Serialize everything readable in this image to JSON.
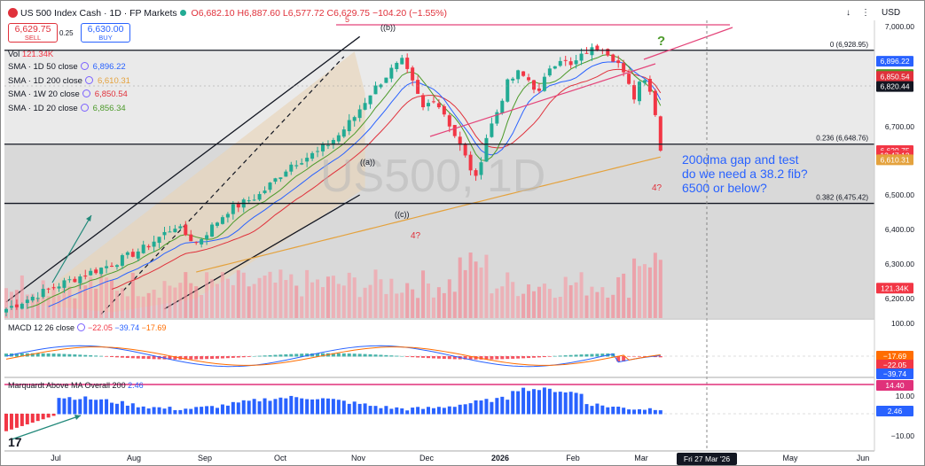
{
  "header": {
    "title": "US 500 Index Cash · 1D · FP Markets",
    "open": "O6,682.10",
    "high": "H6,887.60",
    "low": "L6,577.72",
    "close": "C6,629.75",
    "change": "−104.20 (−1.55%)",
    "currency": "USD"
  },
  "trade": {
    "sell_price": "6,629.75",
    "sell_label": "SELL",
    "spread": "0.25",
    "buy_price": "6,630.00",
    "buy_label": "BUY"
  },
  "legend": {
    "vol_label": "Vol",
    "vol_value": "121.34K",
    "sma50_label": "SMA · 1D 50 close",
    "sma50_value": "6,896.22",
    "sma200_label": "SMA · 1D 200 close",
    "sma200_value": "6,610.31",
    "sma1w20_label": "SMA · 1W 20 close",
    "sma1w20_value": "6,850.54",
    "sma1d20_label": "SMA · 1D 20 close",
    "sma1d20_value": "6,856.34"
  },
  "macd_legend": {
    "label": "MACD 12 26 close",
    "v1": "−22.05",
    "v2": "−39.74",
    "v3": "−17.69"
  },
  "marq_legend": {
    "label": "Marquardt Above MA Overall 200",
    "v1": "2.46"
  },
  "colors": {
    "up": "#22ab94",
    "down": "#f23645",
    "sma50": "#2962ff",
    "sma200": "#e4a23d",
    "sma1w20": "#e0313b",
    "sma1d20": "#4c9a2a",
    "macd": "#2962ff",
    "signal": "#ff6d00",
    "channel_fill": "#e8d4b8",
    "annotation": "#2962ff"
  },
  "chart_data": {
    "type": "candlestick",
    "x_axis": {
      "labels": [
        "Jul",
        "Aug",
        "Sep",
        "Oct",
        "Nov",
        "Dec",
        "2026",
        "Feb",
        "Mar",
        "May",
        "Jun"
      ],
      "cursor_label": "Fri 27 Mar '26"
    },
    "y_axis": {
      "ticks": [
        "7,000.00",
        "6,700.00",
        "6,500.00",
        "6,400.00",
        "6,300.00",
        "6,200.00"
      ],
      "range": [
        6150,
        7010
      ]
    },
    "price_axis_tags": [
      {
        "label": "6,896.22",
        "color": "#2962ff",
        "price": 6896.22
      },
      {
        "label": "6,856.34",
        "color": "#4c9a2a",
        "price": 6856.34
      },
      {
        "label": "6,850.54",
        "color": "#e0313b",
        "price": 6850.54
      },
      {
        "label": "6,820.44",
        "color": "#131722",
        "price": 6820.44
      },
      {
        "label": "6,629.75",
        "color": "#f23645",
        "price": 6629.75
      },
      {
        "label": "13:47:13",
        "color": "#f23645",
        "price": 6615
      },
      {
        "label": "6,610.31",
        "color": "#e4a23d",
        "price": 6603
      },
      {
        "label": "121.34K",
        "color": "#f23645",
        "price": 6230
      }
    ],
    "fib_levels": [
      {
        "label": "0 (6,928.95)",
        "price": 6928.95
      },
      {
        "label": "0.236 (6,648.76)",
        "price": 6648.76
      },
      {
        "label": "0.382 (6,475.42)",
        "price": 6475.42
      }
    ],
    "wave_labels": [
      "((b))",
      "((a))",
      "((c))",
      "4?",
      "4?",
      "?",
      "5"
    ],
    "watermark": "US500, 1D",
    "annotation": [
      "200dma gap and test",
      "do we need a 38.2 fib?",
      "6500 or below?"
    ],
    "macd_axis": [
      "100.00",
      "−17.69",
      "−22.05",
      "−39.74"
    ],
    "marq_axis": [
      "14.40",
      "10.00",
      "2.46",
      "−10.00"
    ]
  }
}
